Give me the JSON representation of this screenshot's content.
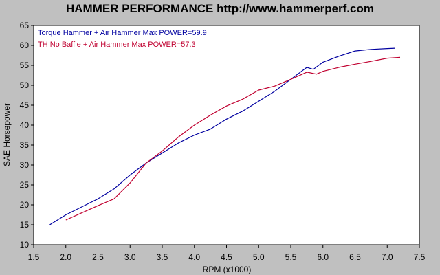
{
  "chart_data": {
    "type": "line",
    "title": "HAMMER PERFORMANCE http://www.hammerperf.com",
    "xlabel": "RPM (x1000)",
    "ylabel": "SAE Horsepower",
    "xlim": [
      1.5,
      7.5
    ],
    "ylim": [
      10,
      65
    ],
    "xticks": [
      "1.5",
      "2.0",
      "2.5",
      "3.0",
      "3.5",
      "4.0",
      "4.5",
      "5.0",
      "5.5",
      "6.0",
      "6.5",
      "7.0",
      "7.5"
    ],
    "yticks": [
      "10",
      "15",
      "20",
      "25",
      "30",
      "35",
      "40",
      "45",
      "50",
      "55",
      "60",
      "65"
    ],
    "grid": false,
    "legend_position": "top-left",
    "series": [
      {
        "name": "Torque Hammer + Air Hammer  Max POWER=59.9",
        "color": "#0000a0",
        "x": [
          1.75,
          2.0,
          2.25,
          2.5,
          2.75,
          3.0,
          3.25,
          3.5,
          3.75,
          4.0,
          4.25,
          4.5,
          4.75,
          5.0,
          5.25,
          5.5,
          5.75,
          5.85,
          6.0,
          6.25,
          6.5,
          6.75,
          7.0,
          7.12
        ],
        "y": [
          15.0,
          17.5,
          19.5,
          21.5,
          24.0,
          27.5,
          30.5,
          33.0,
          35.5,
          37.5,
          39.0,
          41.5,
          43.5,
          46.0,
          48.5,
          51.5,
          54.5,
          54.0,
          55.8,
          57.3,
          58.6,
          59.0,
          59.2,
          59.3
        ]
      },
      {
        "name": "TH No Baffle + Air Hammer  Max POWER=57.3",
        "color": "#c00030",
        "x": [
          2.0,
          2.25,
          2.5,
          2.75,
          3.0,
          3.25,
          3.5,
          3.75,
          4.0,
          4.25,
          4.5,
          4.75,
          5.0,
          5.25,
          5.5,
          5.75,
          5.9,
          6.0,
          6.25,
          6.5,
          6.75,
          7.0,
          7.2
        ],
        "y": [
          16.2,
          18.0,
          19.8,
          21.5,
          25.5,
          30.5,
          33.5,
          37.0,
          40.0,
          42.5,
          44.8,
          46.5,
          48.8,
          49.8,
          51.5,
          53.3,
          52.8,
          53.5,
          54.5,
          55.3,
          56.0,
          56.8,
          57.0
        ]
      }
    ]
  }
}
